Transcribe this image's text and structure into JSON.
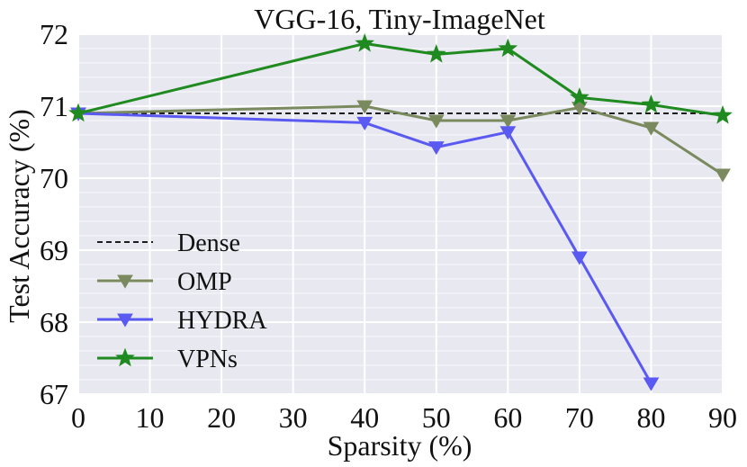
{
  "chart_data": {
    "type": "line",
    "title": "VGG-16, Tiny-ImageNet",
    "xlabel": "Sparsity (%)",
    "ylabel": "Test Accuracy (%)",
    "xlim": [
      0,
      90
    ],
    "ylim": [
      67,
      72
    ],
    "xticks": [
      0,
      10,
      20,
      30,
      40,
      50,
      60,
      70,
      80,
      90
    ],
    "yticks": [
      67,
      68,
      69,
      70,
      71,
      72
    ],
    "grid": true,
    "legend_position": "center-left",
    "dense": {
      "name": "Dense",
      "value": 70.9,
      "color": "#000000"
    },
    "series": [
      {
        "name": "OMP",
        "marker": "triangle-down",
        "color": "#7a8a5e",
        "x": [
          0,
          40,
          50,
          60,
          70,
          80,
          90
        ],
        "y": [
          70.9,
          71.0,
          70.8,
          70.8,
          70.98,
          70.7,
          70.05
        ]
      },
      {
        "name": "HYDRA",
        "marker": "triangle-down",
        "color": "#5a5af2",
        "x": [
          0,
          40,
          50,
          60,
          70,
          80
        ],
        "y": [
          70.9,
          70.77,
          70.43,
          70.64,
          68.9,
          67.15
        ]
      },
      {
        "name": "VPNs",
        "marker": "star",
        "color": "#1f8a1f",
        "x": [
          0,
          40,
          50,
          60,
          70,
          80,
          90
        ],
        "y": [
          70.9,
          71.87,
          71.72,
          71.8,
          71.12,
          71.02,
          70.87
        ]
      }
    ]
  }
}
